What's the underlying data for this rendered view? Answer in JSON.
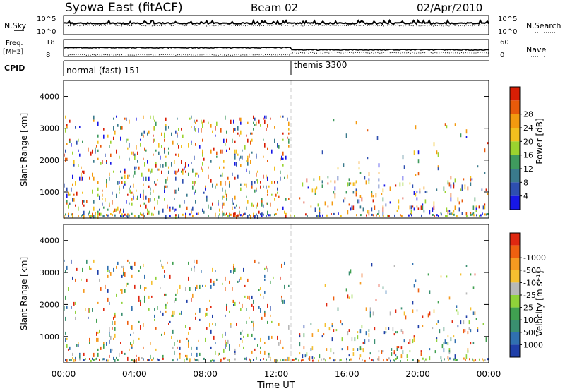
{
  "header": {
    "station": "Syowa East (fitACF)",
    "beam": "Beam 02",
    "date": "02/Apr/2010"
  },
  "strips": {
    "nsky": {
      "label": "N.Sky",
      "ymax": "10^5",
      "ymin": "10^0"
    },
    "nsearch": {
      "label": "N.Search",
      "ymax": "10^5",
      "ymin": "10^0"
    },
    "freq": {
      "label_line1": "Freq.",
      "label_line2": "[MHz]",
      "ymax": "18",
      "ymin": "8"
    },
    "nave": {
      "label": "Nave",
      "ymax": "60",
      "ymin": "0"
    },
    "cpid": {
      "label": "CPID",
      "segments": [
        {
          "start_hour": 0,
          "name": "normal (fast) 151"
        },
        {
          "start_hour": 12.9,
          "name": "themis 3300"
        }
      ]
    }
  },
  "chart_data": [
    {
      "type": "heatmap",
      "quantity": "power",
      "xlabel": "",
      "ylabel": "Slant Range [km]",
      "xlim": [
        0,
        24
      ],
      "ylim": [
        180,
        4500
      ],
      "yticks": [
        1000,
        2000,
        3000,
        4000
      ],
      "colorbar": {
        "label": "Power [dB]",
        "tick_labels": [
          "4",
          "8",
          "12",
          "16",
          "20",
          "24",
          "28"
        ],
        "colors": [
          "#1717e6",
          "#2e4fb0",
          "#3a7a8c",
          "#3f9a5e",
          "#9bd32f",
          "#f2c01e",
          "#f39a0f",
          "#e85a0a",
          "#d81e05"
        ]
      },
      "scatter_regions": [
        {
          "x": [
            0,
            12.8
          ],
          "y": [
            200,
            3400
          ],
          "density": 0.55
        },
        {
          "x": [
            13.3,
            24
          ],
          "y": [
            300,
            1500
          ],
          "density": 0.45
        },
        {
          "x": [
            14.5,
            24
          ],
          "y": [
            1500,
            3300
          ],
          "density": 0.12
        }
      ]
    },
    {
      "type": "heatmap",
      "quantity": "velocity",
      "xlabel": "Time UT",
      "ylabel": "Slant Range [km]",
      "xlim": [
        0,
        24
      ],
      "ylim": [
        180,
        4500
      ],
      "xtick_labels": [
        "00:00",
        "04:00",
        "08:00",
        "12:00",
        "16:00",
        "20:00",
        "00:00"
      ],
      "yticks": [
        1000,
        2000,
        3000,
        4000
      ],
      "colorbar": {
        "label": "Velocity [m s⁻¹]",
        "tick_labels": [
          "1000",
          "500",
          "100",
          "25",
          "-25",
          "-100",
          "-500",
          "-1000"
        ],
        "colors": [
          "#1f3fa8",
          "#3070b0",
          "#3a8f70",
          "#40a050",
          "#8fd23a",
          "#b8b8b8",
          "#f5c030",
          "#f59a20",
          "#ee6010",
          "#e02810"
        ]
      },
      "scatter_regions": [
        {
          "x": [
            0,
            12.8
          ],
          "y": [
            200,
            3400
          ],
          "density": 0.35
        },
        {
          "x": [
            13.3,
            24
          ],
          "y": [
            300,
            1500
          ],
          "density": 0.45
        },
        {
          "x": [
            14.5,
            24
          ],
          "y": [
            1500,
            3300
          ],
          "density": 0.12
        }
      ]
    }
  ]
}
